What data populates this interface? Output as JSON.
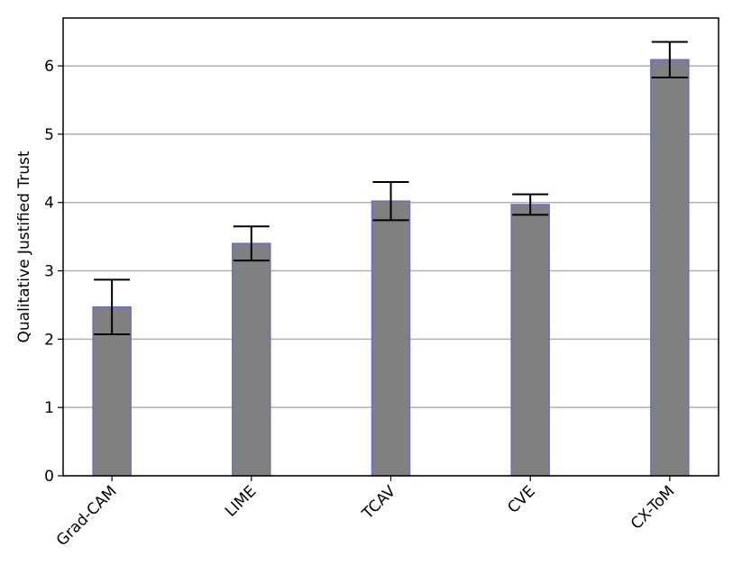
{
  "chart_data": {
    "type": "bar",
    "y_label": "Qualitative Justified Trust",
    "categories": [
      "Grad-CAM",
      "LIME",
      "TCAV",
      "CVE",
      "CX-ToM"
    ],
    "values": [
      2.47,
      3.4,
      4.02,
      3.97,
      6.09
    ],
    "errors": [
      0.4,
      0.25,
      0.28,
      0.15,
      0.26
    ],
    "color": "#808080",
    "edge_color": "#6a6ad8",
    "ylim": [
      0,
      6.7
    ],
    "yticks": [
      0,
      1,
      2,
      3,
      4,
      5,
      6
    ],
    "grid": true
  }
}
